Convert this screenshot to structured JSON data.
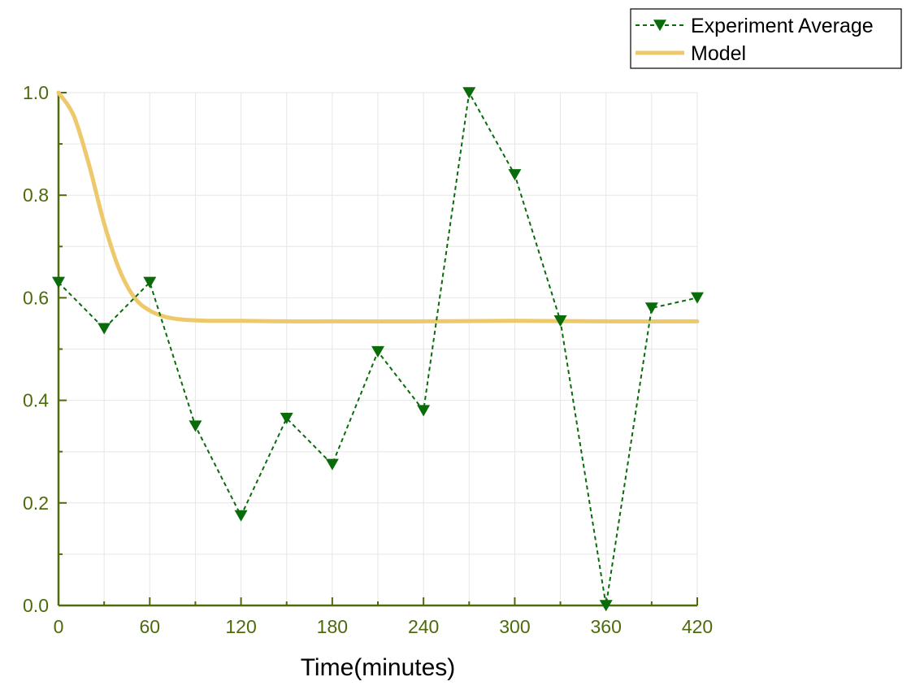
{
  "chart_data": {
    "type": "line",
    "title": "",
    "xlabel": "Time(minutes)",
    "ylabel": "",
    "xlim": [
      0,
      420
    ],
    "ylim": [
      0,
      1.0
    ],
    "x_ticks": [
      0,
      60,
      120,
      180,
      240,
      300,
      360,
      420
    ],
    "y_ticks": [
      0.0,
      0.2,
      0.4,
      0.6,
      0.8,
      1.0
    ],
    "grid": true,
    "legend_position": "top-right, outside plot",
    "series": [
      {
        "name": "Experiment Average",
        "style": "dashed line with downward-triangle markers",
        "color": "#0a6b0a",
        "x": [
          0,
          30,
          60,
          90,
          120,
          150,
          180,
          210,
          240,
          270,
          300,
          330,
          360,
          390,
          420
        ],
        "y": [
          0.63,
          0.54,
          0.63,
          0.35,
          0.175,
          0.365,
          0.275,
          0.495,
          0.38,
          1.0,
          0.84,
          0.555,
          0.0,
          0.58,
          0.6
        ]
      },
      {
        "name": "Model",
        "style": "solid thick line",
        "color": "#edc96b",
        "x": [
          0,
          10,
          20,
          30,
          40,
          50,
          60,
          70,
          80,
          90,
          100,
          120,
          150,
          180,
          240,
          300,
          360,
          420
        ],
        "y": [
          1.0,
          0.955,
          0.86,
          0.745,
          0.655,
          0.6,
          0.575,
          0.563,
          0.558,
          0.556,
          0.555,
          0.555,
          0.554,
          0.554,
          0.554,
          0.555,
          0.554,
          0.554
        ]
      }
    ],
    "colors": {
      "axis": "#4d6b0a",
      "grid": "#e6e6e6",
      "experiment": "#0a6b0a",
      "model": "#edc96b"
    }
  }
}
